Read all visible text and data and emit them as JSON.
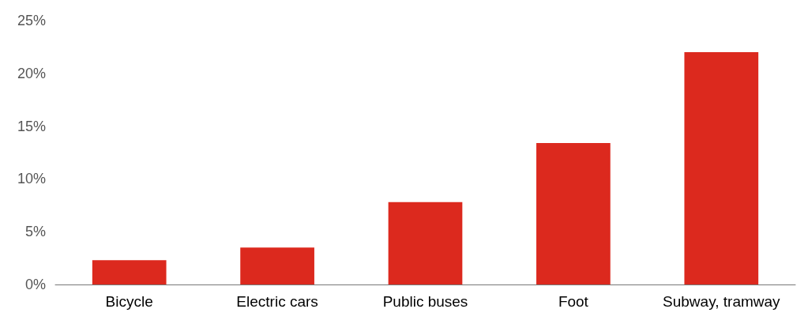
{
  "chart_data": {
    "type": "bar",
    "categories": [
      "Bicycle",
      "Electric cars",
      "Public buses",
      "Foot",
      "Subway, tramway"
    ],
    "values": [
      2.3,
      3.5,
      7.8,
      13.4,
      22.0
    ],
    "color": "#dc291e",
    "ylim": [
      0,
      25
    ],
    "yticks": [
      {
        "value": 0,
        "label": "0%"
      },
      {
        "value": 5,
        "label": "5%"
      },
      {
        "value": 10,
        "label": "10%"
      },
      {
        "value": 15,
        "label": "15%"
      },
      {
        "value": 20,
        "label": "20%"
      },
      {
        "value": 25,
        "label": "25%"
      }
    ],
    "grid": false
  }
}
